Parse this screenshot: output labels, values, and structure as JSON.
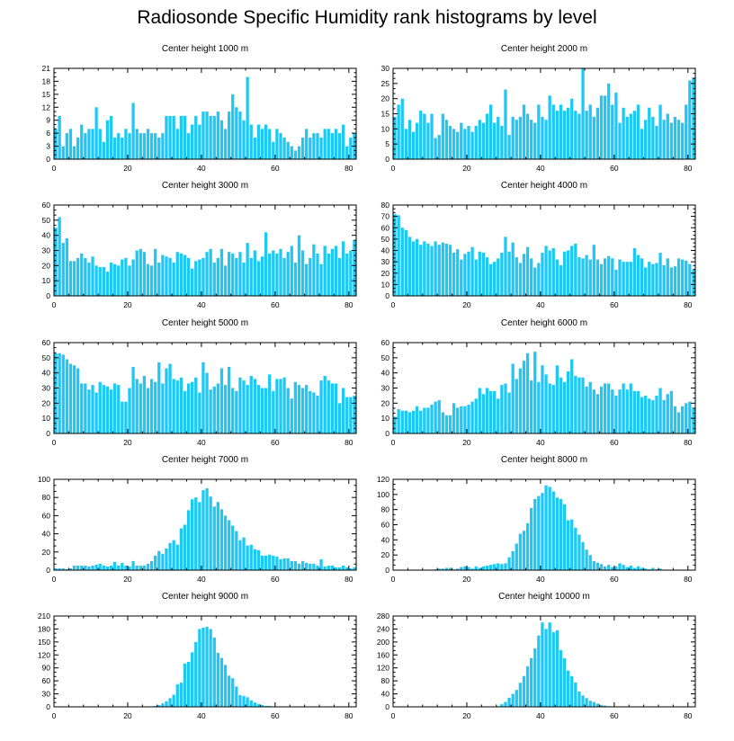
{
  "title": "Radiosonde Specific Humidity rank histograms by level",
  "bar_color": "#1ec8f5",
  "chart_data": [
    {
      "type": "bar",
      "title": "Center height 1000 m",
      "xlim": [
        0,
        82
      ],
      "ylim": [
        0,
        21
      ],
      "xticks": [
        0,
        20,
        40,
        60,
        80
      ],
      "yticks": [
        0,
        3,
        6,
        9,
        12,
        15,
        18,
        21
      ],
      "values": [
        7,
        10,
        3,
        6,
        7,
        3,
        5,
        8,
        6,
        7,
        7,
        12,
        7,
        4,
        9,
        10,
        5,
        6,
        5,
        7,
        6,
        13,
        7,
        6,
        6,
        7,
        6,
        6,
        5,
        6,
        10,
        10,
        10,
        7,
        10,
        10,
        6,
        8,
        10,
        8,
        11,
        11,
        10,
        10,
        11,
        9,
        7,
        11,
        15,
        12,
        11,
        9,
        19,
        8,
        5,
        8,
        7,
        8,
        7,
        4,
        7,
        6,
        5,
        4,
        3,
        2,
        3,
        5,
        7,
        5,
        6,
        6,
        5,
        7,
        7,
        6,
        7,
        6,
        8,
        3,
        5,
        6
      ]
    },
    {
      "type": "bar",
      "title": "Center height 2000 m",
      "xlim": [
        0,
        82
      ],
      "ylim": [
        0,
        30
      ],
      "xticks": [
        0,
        20,
        40,
        60,
        80
      ],
      "yticks": [
        0,
        5,
        10,
        15,
        20,
        25,
        30
      ],
      "values": [
        14,
        18,
        20,
        10,
        13,
        9,
        12,
        16,
        15,
        12,
        15,
        7,
        8,
        15,
        13,
        11,
        10,
        9,
        12,
        10,
        11,
        9,
        11,
        13,
        12,
        15,
        18,
        12,
        14,
        11,
        23,
        8,
        14,
        13,
        14,
        18,
        15,
        13,
        12,
        18,
        14,
        13,
        21,
        18,
        16,
        18,
        16,
        17,
        20,
        16,
        15,
        30,
        16,
        18,
        14,
        17,
        21,
        21,
        25,
        18,
        22,
        12,
        17,
        14,
        15,
        16,
        18,
        10,
        13,
        17,
        14,
        11,
        18,
        13,
        15,
        12,
        14,
        13,
        12,
        18,
        26,
        27
      ]
    },
    {
      "type": "bar",
      "title": "Center height 3000 m",
      "xlim": [
        0,
        82
      ],
      "ylim": [
        0,
        60
      ],
      "xticks": [
        0,
        20,
        40,
        60,
        80
      ],
      "yticks": [
        0,
        10,
        20,
        30,
        40,
        50,
        60
      ],
      "values": [
        45,
        52,
        35,
        38,
        23,
        23,
        25,
        28,
        25,
        22,
        26,
        20,
        19,
        19,
        16,
        22,
        21,
        20,
        24,
        25,
        20,
        24,
        30,
        31,
        29,
        21,
        20,
        31,
        22,
        27,
        26,
        25,
        22,
        29,
        28,
        27,
        25,
        18,
        23,
        24,
        25,
        29,
        31,
        22,
        25,
        31,
        20,
        29,
        28,
        25,
        29,
        22,
        35,
        25,
        30,
        23,
        26,
        42,
        28,
        30,
        28,
        31,
        25,
        29,
        33,
        22,
        40,
        30,
        21,
        25,
        34,
        28,
        21,
        33,
        28,
        31,
        33,
        25,
        36,
        28,
        30,
        37
      ]
    },
    {
      "type": "bar",
      "title": "Center height 4000 m",
      "xlim": [
        0,
        82
      ],
      "ylim": [
        0,
        80
      ],
      "xticks": [
        0,
        20,
        40,
        60,
        80
      ],
      "yticks": [
        0,
        10,
        20,
        30,
        40,
        50,
        60,
        70,
        80
      ],
      "values": [
        72,
        71,
        60,
        58,
        52,
        48,
        50,
        45,
        48,
        46,
        44,
        48,
        45,
        47,
        46,
        45,
        38,
        41,
        32,
        37,
        39,
        43,
        32,
        39,
        38,
        34,
        28,
        30,
        33,
        38,
        52,
        39,
        47,
        34,
        29,
        37,
        43,
        33,
        25,
        29,
        38,
        44,
        40,
        42,
        32,
        27,
        39,
        40,
        44,
        46,
        34,
        33,
        36,
        32,
        45,
        32,
        28,
        33,
        35,
        33,
        23,
        32,
        30,
        30,
        30,
        42,
        36,
        33,
        25,
        30,
        28,
        29,
        38,
        27,
        33,
        25,
        26,
        33,
        32,
        31,
        28,
        23
      ]
    },
    {
      "type": "bar",
      "title": "Center height 5000 m",
      "xlim": [
        0,
        82
      ],
      "ylim": [
        0,
        60
      ],
      "xticks": [
        0,
        20,
        40,
        60,
        80
      ],
      "yticks": [
        0,
        10,
        20,
        30,
        40,
        50,
        60
      ],
      "values": [
        53,
        53,
        52,
        49,
        46,
        45,
        43,
        33,
        33,
        29,
        32,
        27,
        34,
        32,
        31,
        29,
        33,
        32,
        21,
        21,
        30,
        44,
        36,
        33,
        38,
        30,
        36,
        34,
        47,
        33,
        43,
        46,
        36,
        35,
        37,
        28,
        33,
        34,
        37,
        27,
        47,
        40,
        29,
        31,
        33,
        43,
        32,
        44,
        30,
        28,
        37,
        35,
        32,
        38,
        36,
        32,
        30,
        30,
        39,
        28,
        36,
        36,
        37,
        30,
        23,
        34,
        32,
        30,
        32,
        28,
        27,
        25,
        35,
        38,
        35,
        33,
        33,
        20,
        30,
        24,
        24,
        25
      ]
    },
    {
      "type": "bar",
      "title": "Center height 6000 m",
      "xlim": [
        0,
        82
      ],
      "ylim": [
        0,
        60
      ],
      "xticks": [
        0,
        20,
        40,
        60,
        80
      ],
      "yticks": [
        0,
        10,
        20,
        30,
        40,
        50,
        60
      ],
      "values": [
        11,
        16,
        15,
        15,
        14,
        15,
        18,
        15,
        17,
        17,
        19,
        21,
        22,
        14,
        12,
        12,
        20,
        17,
        18,
        18,
        19,
        21,
        23,
        30,
        26,
        30,
        28,
        28,
        23,
        32,
        33,
        27,
        46,
        36,
        43,
        48,
        53,
        35,
        54,
        34,
        45,
        39,
        33,
        32,
        45,
        37,
        34,
        41,
        49,
        38,
        37,
        37,
        31,
        34,
        29,
        26,
        31,
        33,
        33,
        29,
        25,
        29,
        33,
        29,
        33,
        28,
        28,
        24,
        25,
        23,
        22,
        25,
        30,
        22,
        26,
        28,
        18,
        14,
        18,
        20,
        21,
        17
      ]
    },
    {
      "type": "bar",
      "title": "Center height 7000 m",
      "xlim": [
        0,
        82
      ],
      "ylim": [
        0,
        100
      ],
      "xticks": [
        0,
        20,
        40,
        60,
        80
      ],
      "yticks": [
        0,
        20,
        40,
        60,
        80,
        100
      ],
      "values": [
        2,
        2,
        2,
        1,
        2,
        5,
        5,
        5,
        5,
        4,
        5,
        6,
        7,
        5,
        4,
        5,
        9,
        5,
        8,
        5,
        4,
        10,
        5,
        5,
        5,
        7,
        10,
        16,
        21,
        18,
        24,
        30,
        33,
        28,
        46,
        50,
        66,
        78,
        80,
        75,
        88,
        90,
        81,
        70,
        75,
        67,
        60,
        55,
        49,
        43,
        33,
        36,
        27,
        28,
        23,
        22,
        16,
        16,
        17,
        16,
        15,
        12,
        13,
        13,
        10,
        10,
        7,
        10,
        8,
        7,
        7,
        5,
        12,
        4,
        5,
        5,
        3,
        3,
        5,
        3,
        2,
        3
      ]
    },
    {
      "type": "bar",
      "title": "Center height 8000 m",
      "xlim": [
        0,
        82
      ],
      "ylim": [
        0,
        120
      ],
      "xticks": [
        0,
        20,
        40,
        60,
        80
      ],
      "yticks": [
        0,
        20,
        40,
        60,
        80,
        100,
        120
      ],
      "values": [
        0,
        0,
        0,
        0,
        0,
        0,
        0,
        0,
        0,
        0,
        0,
        1,
        2,
        2,
        3,
        3,
        1,
        2,
        4,
        5,
        4,
        2,
        5,
        3,
        5,
        6,
        7,
        8,
        9,
        8,
        9,
        17,
        25,
        35,
        48,
        52,
        62,
        82,
        94,
        98,
        102,
        112,
        110,
        104,
        96,
        94,
        87,
        66,
        67,
        56,
        47,
        37,
        27,
        20,
        12,
        10,
        8,
        5,
        7,
        4,
        5,
        9,
        7,
        4,
        6,
        3,
        5,
        3,
        2,
        1,
        3,
        1,
        2,
        0,
        0,
        0,
        0,
        0,
        0,
        0,
        0,
        0
      ]
    },
    {
      "type": "bar",
      "title": "Center height 9000 m",
      "xlim": [
        0,
        82
      ],
      "ylim": [
        0,
        210
      ],
      "xticks": [
        0,
        20,
        40,
        60,
        80
      ],
      "yticks": [
        0,
        30,
        60,
        90,
        120,
        150,
        180,
        210
      ],
      "values": [
        0,
        0,
        0,
        0,
        0,
        0,
        0,
        0,
        0,
        0,
        0,
        0,
        0,
        0,
        0,
        0,
        0,
        0,
        0,
        0,
        0,
        0,
        0,
        0,
        0,
        0,
        0,
        2,
        4,
        8,
        13,
        20,
        28,
        52,
        56,
        100,
        104,
        126,
        150,
        180,
        183,
        185,
        180,
        160,
        125,
        113,
        97,
        72,
        66,
        47,
        27,
        25,
        22,
        15,
        10,
        6,
        4,
        2,
        2,
        1,
        0,
        0,
        0,
        0,
        0,
        0,
        0,
        0,
        0,
        0,
        0,
        0,
        0,
        0,
        0,
        0,
        0,
        0,
        0,
        0,
        0,
        0
      ]
    },
    {
      "type": "bar",
      "title": "Center height 10000 m",
      "xlim": [
        0,
        82
      ],
      "ylim": [
        0,
        280
      ],
      "xticks": [
        0,
        20,
        40,
        60,
        80
      ],
      "yticks": [
        0,
        40,
        80,
        120,
        160,
        200,
        240,
        280
      ],
      "values": [
        0,
        0,
        0,
        0,
        0,
        0,
        0,
        0,
        0,
        0,
        0,
        0,
        0,
        0,
        0,
        0,
        0,
        0,
        0,
        0,
        0,
        0,
        0,
        0,
        0,
        0,
        0,
        0,
        2,
        8,
        15,
        28,
        40,
        52,
        74,
        95,
        125,
        150,
        180,
        220,
        260,
        240,
        260,
        230,
        236,
        175,
        150,
        112,
        95,
        75,
        47,
        35,
        27,
        19,
        15,
        10,
        6,
        4,
        2,
        0,
        0,
        0,
        0,
        0,
        0,
        0,
        0,
        0,
        0,
        0,
        0,
        0,
        0,
        0,
        0,
        0,
        0,
        0,
        0,
        0,
        0,
        0
      ]
    }
  ]
}
